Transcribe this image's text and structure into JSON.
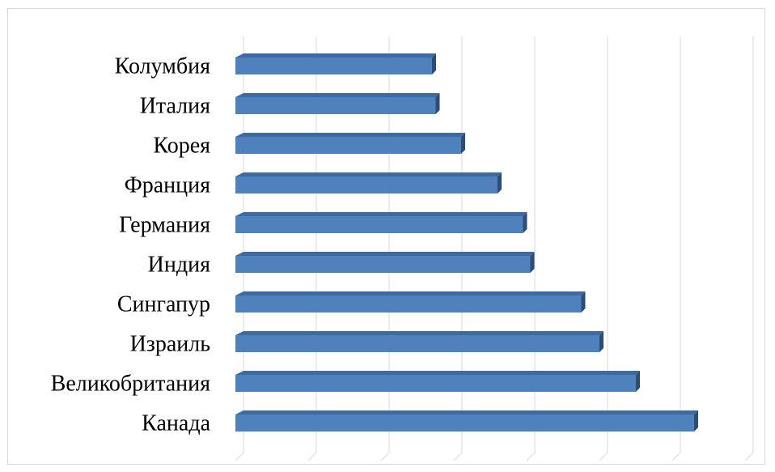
{
  "chart_data": {
    "type": "bar",
    "orientation": "horizontal",
    "style": "3d",
    "categories": [
      "Колумбия",
      "Италия",
      "Корея",
      "Франция",
      "Германия",
      "Индия",
      "Сингапур",
      "Израиль",
      "Великобритания",
      "Канада"
    ],
    "values": [
      2.7,
      2.75,
      3.1,
      3.6,
      3.95,
      4.05,
      4.75,
      5.0,
      5.5,
      6.3
    ],
    "xlim": [
      0,
      7
    ],
    "major_unit": 1,
    "grid": true,
    "legend": "none",
    "tick_labels_visible": false,
    "bar_color": "#4f81bd",
    "bar_top_color": "#3d6aa0",
    "bar_side_color": "#2c4d75",
    "grid_color": "#d9d9d9"
  }
}
